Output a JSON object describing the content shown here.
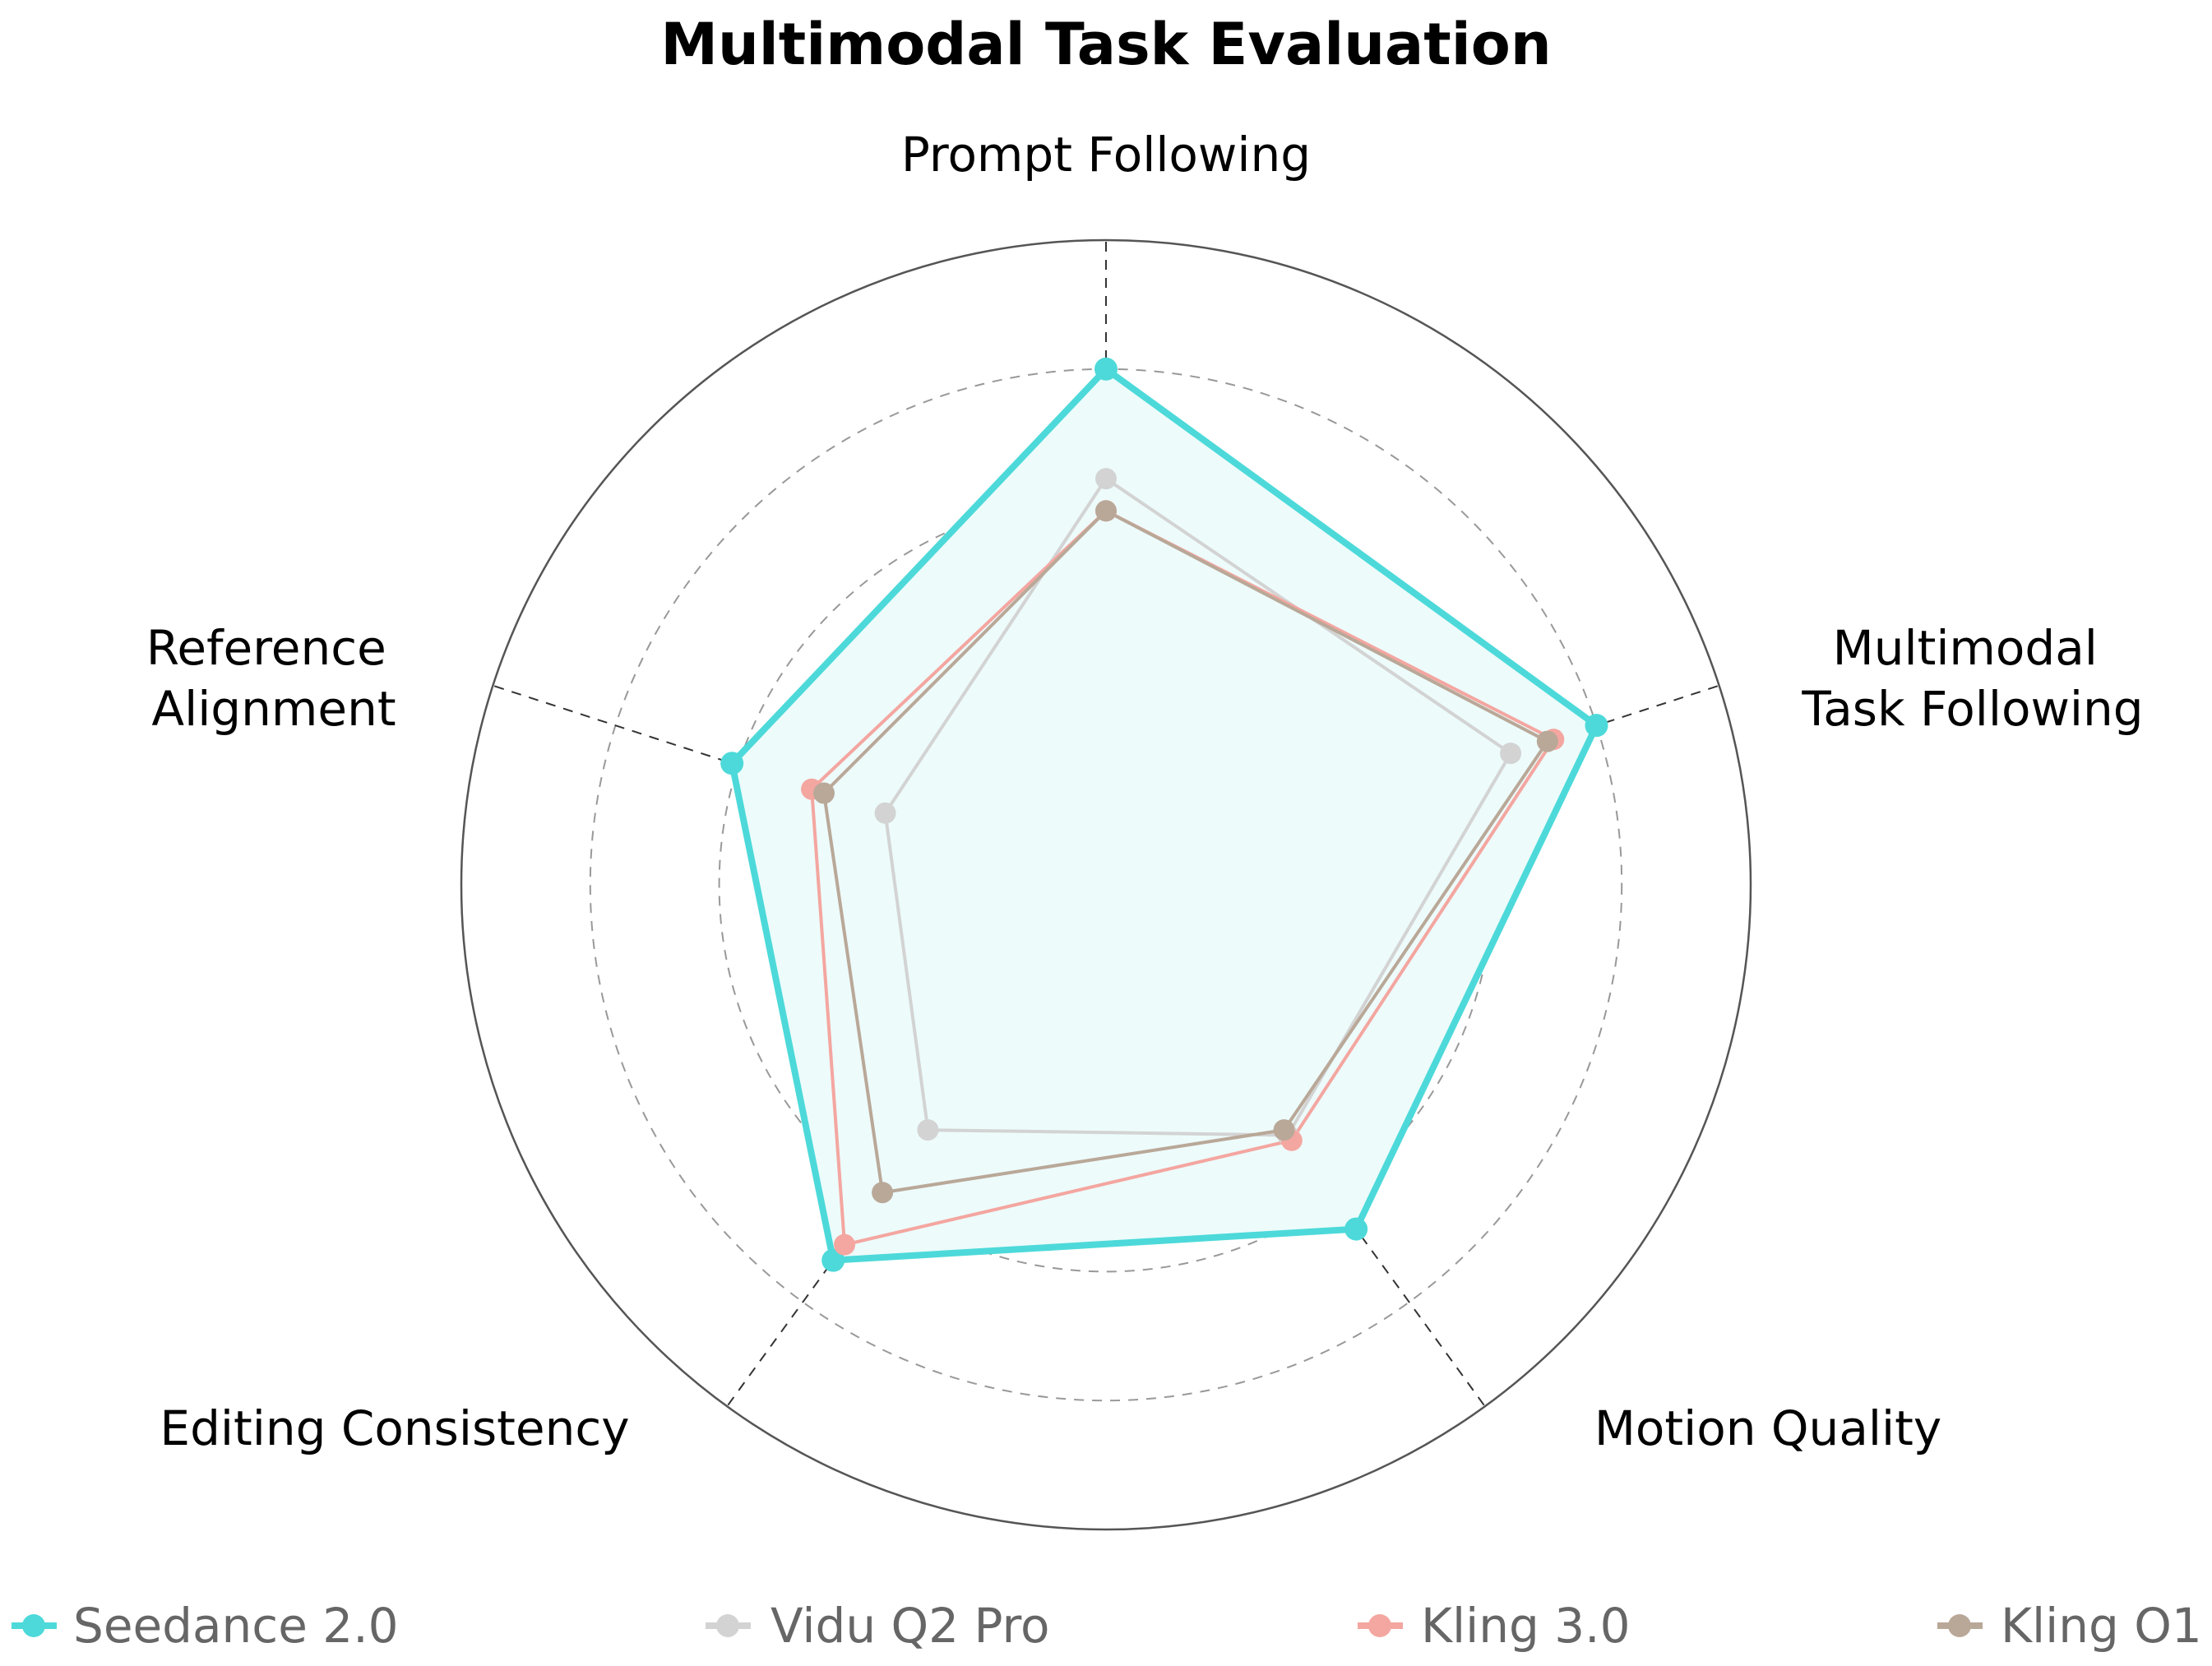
{
  "chart_data": {
    "type": "radar",
    "title": "Multimodal Task Evaluation",
    "axes": [
      {
        "label_lines": [
          "Prompt Following"
        ]
      },
      {
        "label_lines": [
          "Multimodal",
          "Task Following"
        ]
      },
      {
        "label_lines": [
          "Motion Quality"
        ]
      },
      {
        "label_lines": [
          "Editing Consistency"
        ]
      },
      {
        "label_lines": [
          "Reference",
          "Alignment"
        ]
      }
    ],
    "rlim": [
      0,
      5
    ],
    "grid_rings": [
      1,
      2,
      3,
      4
    ],
    "grid": true,
    "legend_placement": "bottom",
    "series": [
      {
        "name": "Seedance 2.0",
        "color": "#4DD9D9",
        "filled": true,
        "fill_color": "#EDFBFB",
        "values": [
          4.0,
          4.0,
          3.3,
          3.6,
          3.05
        ]
      },
      {
        "name": "Vidu Q2 Pro",
        "color": "#D3D3D3",
        "filled": false,
        "values": [
          3.15,
          3.3,
          2.4,
          2.35,
          1.8
        ]
      },
      {
        "name": "Kling 3.0",
        "color": "#F4A6A0",
        "filled": false,
        "values": [
          2.9,
          3.65,
          2.45,
          3.45,
          2.4
        ]
      },
      {
        "name": "Kling O1",
        "color": "#B9A898",
        "filled": false,
        "values": [
          2.9,
          3.6,
          2.35,
          2.95,
          2.3
        ]
      }
    ]
  }
}
